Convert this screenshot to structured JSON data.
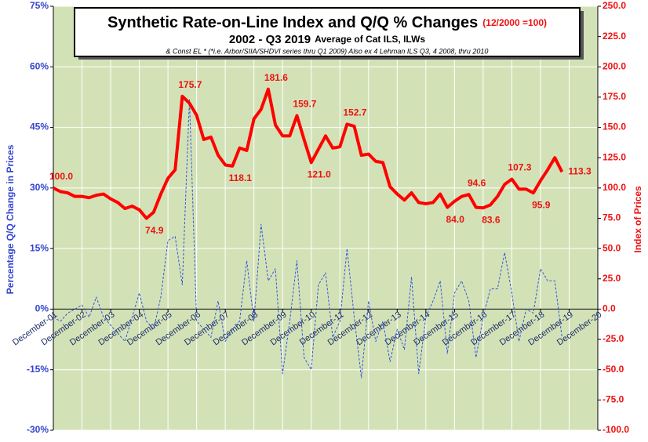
{
  "chart_data": {
    "type": "line",
    "title": "Synthetic Rate-on-Line Index and Q/Q % Changes",
    "title_note": "(12/2000 =100)",
    "subtitle": "2002 - Q3 2019",
    "subtitle_note": "Average of Cat ILS, ILWs",
    "footnote": "& Const EL * (*i.e. Arbor/SIIA/SHDVI  series thru Q1 2009)  Also ex 4 Lehman ILS Q3, 4 2008, thru 2010",
    "y_label": "Percentage Q/Q Change in Prices",
    "y2_label": "Index of Prices",
    "categories": [
      "December-01",
      null,
      null,
      null,
      "December-02",
      null,
      null,
      null,
      "December-03",
      null,
      null,
      null,
      "December-04",
      null,
      null,
      null,
      "December-05",
      null,
      null,
      null,
      "December-06",
      null,
      null,
      null,
      "December-07",
      null,
      null,
      null,
      "December-08",
      null,
      null,
      null,
      "December-09",
      null,
      null,
      null,
      "December-10",
      null,
      null,
      null,
      "December-11",
      null,
      null,
      null,
      "December-12",
      null,
      null,
      null,
      "December-13",
      null,
      null,
      null,
      "December-14",
      null,
      null,
      null,
      "December-15",
      null,
      null,
      null,
      "December-16",
      null,
      null,
      null,
      "December-17",
      null,
      null,
      null,
      "December-18",
      null,
      null,
      null,
      "December-19",
      null,
      null,
      null,
      "December-20"
    ],
    "ylim": [
      -30,
      75
    ],
    "yticks": [
      {
        "value": -30,
        "label": "-30%"
      },
      {
        "value": -15,
        "label": "-15%"
      },
      {
        "value": 0,
        "label": "0%"
      },
      {
        "value": 15,
        "label": "15%"
      },
      {
        "value": 30,
        "label": "30%"
      },
      {
        "value": 45,
        "label": "45%"
      },
      {
        "value": 60,
        "label": "60%"
      },
      {
        "value": 75,
        "label": "75%"
      }
    ],
    "y2lim": [
      -100,
      250
    ],
    "y2ticks": [
      {
        "value": -100,
        "label": "-100.0"
      },
      {
        "value": -75,
        "label": "-75.0"
      },
      {
        "value": -50,
        "label": "-50.0"
      },
      {
        "value": -25,
        "label": "-25.0"
      },
      {
        "value": 0,
        "label": "0.0"
      },
      {
        "value": 25,
        "label": "25.0"
      },
      {
        "value": 50,
        "label": "50.0"
      },
      {
        "value": 75,
        "label": "75.0"
      },
      {
        "value": 100,
        "label": "100.0"
      },
      {
        "value": 125,
        "label": "125.0"
      },
      {
        "value": 150,
        "label": "150.0"
      },
      {
        "value": 175,
        "label": "175.0"
      },
      {
        "value": 200,
        "label": "200.0"
      },
      {
        "value": 225,
        "label": "225.0"
      },
      {
        "value": 250,
        "label": "250.0"
      }
    ],
    "grid": true,
    "series": [
      {
        "color": "#3355dd",
        "dashed": true,
        "axis": "y",
        "values": [
          -2,
          -3,
          -1,
          0,
          1,
          -2,
          3,
          -2,
          -4,
          -6,
          -8,
          -2,
          4,
          -3,
          -5,
          3,
          17,
          18,
          6,
          52,
          -3,
          -5,
          -7,
          2,
          -8,
          -5,
          -3,
          12,
          -3,
          21,
          7,
          10,
          -16,
          -3,
          12,
          -12,
          -15,
          6,
          9,
          -7,
          -3,
          15,
          -2,
          -17,
          2,
          -8,
          -3,
          -13,
          -5,
          -10,
          8,
          -16,
          -2,
          2,
          7,
          -11,
          4,
          7,
          2,
          -12,
          -2,
          5,
          5,
          14,
          4,
          -8,
          0,
          -1,
          10,
          7,
          7,
          -7,
          null,
          null,
          null,
          null,
          null
        ]
      },
      {
        "color": "#ff0000",
        "dashed": false,
        "axis": "y2",
        "values": [
          100,
          97,
          96,
          93,
          93,
          92,
          94,
          95,
          91,
          88,
          83,
          85,
          82,
          74.9,
          80,
          95,
          108,
          115,
          175.7,
          170,
          160,
          140,
          142,
          127,
          119,
          118.1,
          133,
          131,
          157,
          165,
          181.6,
          152,
          143,
          143,
          159.7,
          140,
          121,
          132,
          143,
          133,
          134,
          152.7,
          151,
          127,
          128,
          122,
          121,
          101,
          95,
          90,
          96,
          88,
          87,
          88,
          95,
          84,
          89,
          93,
          94.6,
          84,
          83.6,
          86,
          93,
          103,
          107.3,
          99,
          99,
          95.9,
          106,
          115,
          125,
          113.3,
          null,
          null,
          null,
          null,
          null
        ],
        "value_labels": [
          "100.0",
          null,
          null,
          null,
          null,
          null,
          null,
          null,
          null,
          null,
          null,
          null,
          null,
          "74.9",
          null,
          null,
          null,
          null,
          "175.7",
          null,
          null,
          null,
          null,
          null,
          null,
          "118.1",
          null,
          null,
          null,
          null,
          "181.6",
          null,
          null,
          null,
          "159.7",
          null,
          "121.0",
          null,
          null,
          null,
          null,
          "152.7",
          null,
          null,
          null,
          null,
          null,
          null,
          null,
          null,
          null,
          null,
          null,
          null,
          null,
          "84.0",
          null,
          null,
          "94.6",
          null,
          "83.6",
          null,
          null,
          null,
          "107.3",
          null,
          null,
          "95.9",
          null,
          null,
          null,
          "113.3",
          null,
          null,
          null,
          null,
          null
        ]
      }
    ]
  }
}
